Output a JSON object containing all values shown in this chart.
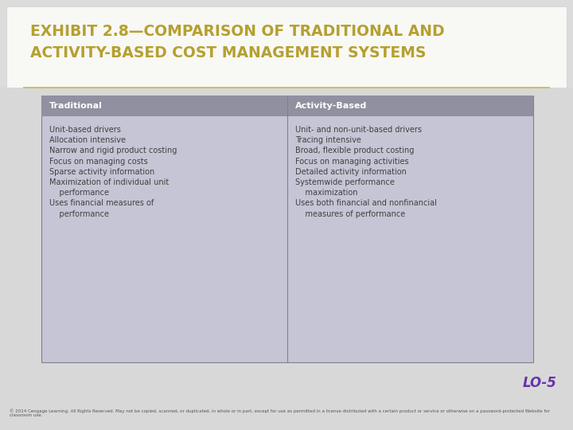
{
  "title_line1": "EXHIBIT 2.8—COMPARISON OF TRADITIONAL AND",
  "title_line2": "ACTIVITY-BASED COST MANAGEMENT SYSTEMS",
  "title_color": "#b5a030",
  "bg_color": "#dcdcdc",
  "title_bg": "#f8f8f5",
  "body_bg": "#d8d8d8",
  "header_bg": "#9090a0",
  "table_bg": "#c5c5d5",
  "table_border": "#808090",
  "body_text_color": "#404040",
  "col1_header": "Traditional",
  "col2_header": "Activity-Based",
  "col1_items_flat": [
    "Unit-based drivers",
    "Allocation intensive",
    "Narrow and rigid product costing",
    "Focus on managing costs",
    "Sparse activity information",
    "Maximization of individual unit",
    "    performance",
    "Uses financial measures of",
    "    performance"
  ],
  "col2_items_flat": [
    "Unit- and non-unit-based drivers",
    "Tracing intensive",
    "Broad, flexible product costing",
    "Focus on managing activities",
    "Detailed activity information",
    "Systemwide performance",
    "    maximization",
    "Uses both financial and nonfinancial",
    "    measures of performance"
  ],
  "lo_text": "LO-5",
  "lo_color": "#6633aa",
  "footer_text": "© 2014 Cengage Learning. All Rights Reserved. May not be copied, scanned, or duplicated, in whole or in part, except for use as permitted in a license distributed with a certain product or service or otherwise on a password-protected Website for classroom use.",
  "divider_color": "#c8b84a",
  "font_size_title": 13.5,
  "font_size_header": 8,
  "font_size_body": 7,
  "font_size_footer": 4,
  "font_size_lo": 12
}
